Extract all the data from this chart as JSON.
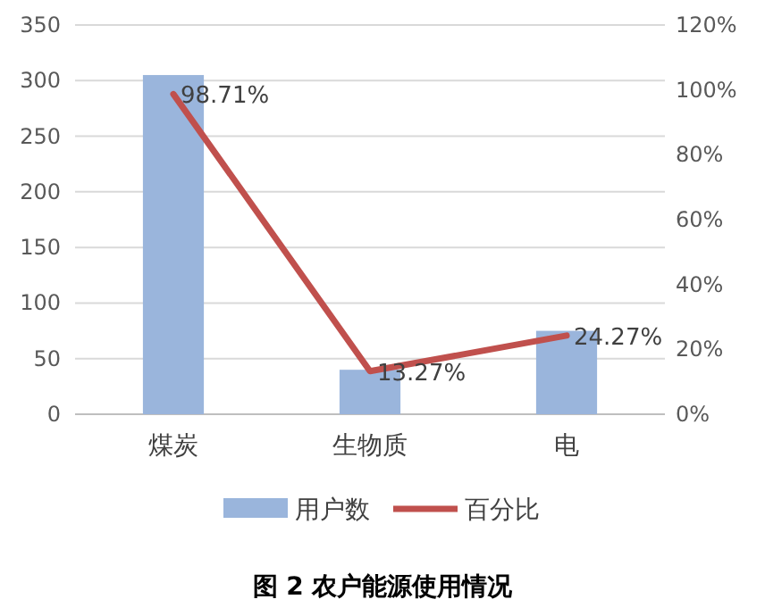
{
  "chart_data": {
    "type": "bar",
    "title": "图 2 农户能源使用情况",
    "categories": [
      "煤炭",
      "生物质",
      "电"
    ],
    "series": [
      {
        "name": "用户数",
        "color": "#9ab5dc",
        "values": [
          305,
          40,
          75
        ]
      },
      {
        "name": "百分比",
        "type": "line",
        "axis": "y2",
        "color": "#c0504d",
        "values": [
          98.71,
          13.27,
          24.27
        ],
        "value_labels": [
          "98.71%",
          "13.27%",
          "24.27%"
        ]
      }
    ],
    "ylim": [
      0,
      350
    ],
    "yticks": [
      0,
      50,
      100,
      150,
      200,
      250,
      300,
      350
    ],
    "y2lim": [
      0,
      120
    ],
    "y2ticks": [
      {
        "value": 0,
        "label": "0%"
      },
      {
        "value": 20,
        "label": "20%"
      },
      {
        "value": 40,
        "label": "40%"
      },
      {
        "value": 60,
        "label": "60%"
      },
      {
        "value": 80,
        "label": "80%"
      },
      {
        "value": 100,
        "label": "100%"
      },
      {
        "value": 120,
        "label": "120%"
      }
    ],
    "grid": "y",
    "legend": "bottom"
  }
}
